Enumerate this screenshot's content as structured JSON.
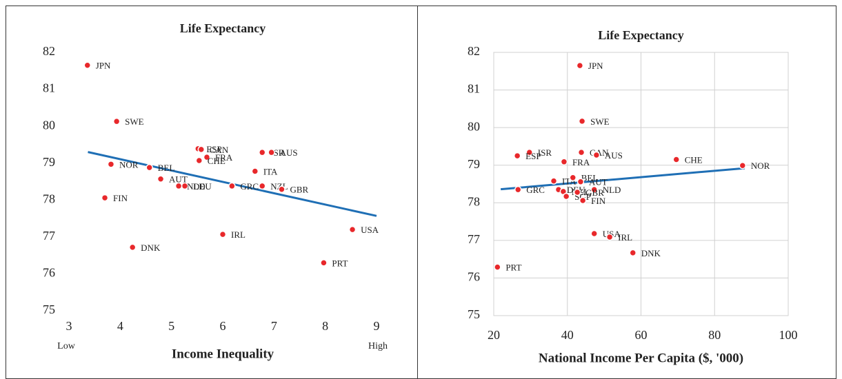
{
  "chart_data": [
    {
      "type": "scatter",
      "title": "Life Expectancy",
      "x_label": "Income Inequality",
      "x_low_label": "Low",
      "x_high_label": "High",
      "color": "#e8282b",
      "grid": false,
      "xlim": [
        3,
        9
      ],
      "xticks": [
        3,
        4,
        5,
        6,
        7,
        8,
        9
      ],
      "ylim": [
        75,
        82
      ],
      "yticks": [
        75,
        76,
        77,
        78,
        79,
        80,
        81,
        82
      ],
      "point_labels": [
        "JPN",
        "SWE",
        "ESP",
        "CAN",
        "ISR",
        "AUS",
        "FRA",
        "CHE",
        "BEL",
        "NOR",
        "ITA",
        "AUT",
        "NZL",
        "DEU",
        "NLD",
        "GRC",
        "GBR",
        "FIN",
        "IRL",
        "USA",
        "DNK",
        "PRT"
      ],
      "x": [
        3.36,
        3.93,
        5.52,
        5.58,
        6.77,
        6.95,
        5.69,
        5.54,
        4.57,
        3.82,
        6.63,
        4.79,
        6.77,
        5.26,
        5.14,
        6.18,
        7.15,
        3.7,
        6.0,
        8.53,
        4.24,
        7.97
      ],
      "values": [
        81.65,
        80.13,
        79.39,
        79.37,
        79.29,
        79.29,
        79.16,
        79.07,
        78.88,
        78.97,
        78.78,
        78.57,
        78.38,
        78.38,
        78.38,
        78.38,
        78.29,
        78.06,
        77.07,
        77.2,
        76.72,
        76.3
      ],
      "trendline": {
        "color": "#1f6fb5",
        "x": [
          3.37,
          9
        ],
        "values": [
          79.3,
          77.57
        ]
      }
    },
    {
      "type": "scatter",
      "title": "Life Expectancy",
      "x_label": "National Income Per Capita ($, '000)",
      "color": "#e8282b",
      "grid": true,
      "xlim": [
        20,
        100
      ],
      "xticks": [
        20,
        40,
        60,
        80,
        100
      ],
      "ylim": [
        75,
        82
      ],
      "yticks": [
        75,
        76,
        77,
        78,
        79,
        80,
        81,
        82
      ],
      "point_labels": [
        "JPN",
        "SWE",
        "CAN",
        "AUS",
        "ISR",
        "ESP",
        "FRA",
        "CHE",
        "NOR",
        "ITA",
        "BEL",
        "DEU",
        "AUT",
        "NLD",
        "GRC",
        "NZL",
        "SGP",
        "GBR",
        "FIN",
        "USA",
        "IRL",
        "DNK",
        "PRT"
      ],
      "x": [
        43.4,
        44.0,
        43.8,
        47.9,
        29.7,
        26.4,
        39.1,
        69.6,
        87.6,
        36.3,
        41.5,
        37.6,
        43.6,
        47.3,
        26.6,
        38.9,
        39.7,
        42.7,
        44.2,
        47.3,
        51.5,
        57.8,
        21.0
      ],
      "values": [
        81.65,
        80.17,
        79.34,
        79.27,
        79.34,
        79.25,
        79.09,
        79.15,
        78.99,
        78.58,
        78.67,
        78.35,
        78.56,
        78.35,
        78.35,
        78.3,
        78.17,
        78.28,
        78.06,
        77.18,
        77.09,
        76.67,
        76.29
      ],
      "trendline": {
        "color": "#1f6fb5",
        "x": [
          21.9,
          88.2
        ],
        "values": [
          78.36,
          78.92
        ]
      }
    }
  ]
}
